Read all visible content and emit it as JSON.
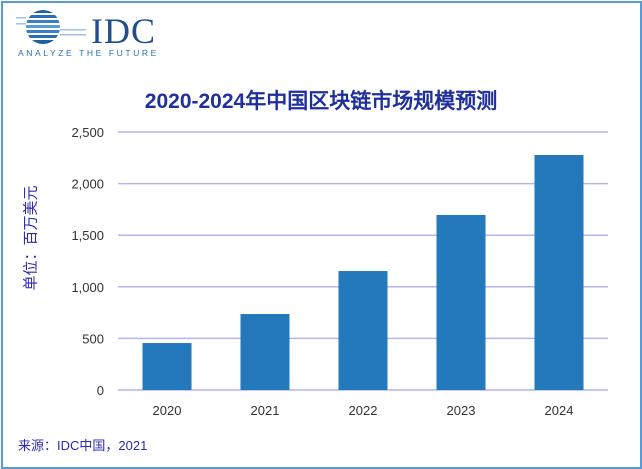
{
  "logo": {
    "name": "IDC",
    "tagline": "ANALYZE THE FUTURE"
  },
  "source": "来源：IDC中国，2021",
  "chart_data": {
    "type": "bar",
    "title": "2020-2024年中国区块链市场规模预测",
    "xlabel": "",
    "ylabel": "单位：百万美元",
    "categories": [
      "2020",
      "2021",
      "2022",
      "2023",
      "2024"
    ],
    "values": [
      455,
      736,
      1153,
      1696,
      2277
    ],
    "ylim": [
      0,
      2500
    ],
    "yticks": [
      0,
      500,
      1000,
      1500,
      2000,
      2500
    ],
    "ytick_labels": [
      "0",
      "500",
      "1,000",
      "1,500",
      "2,000",
      "2,500"
    ],
    "grid": true,
    "colors": {
      "bar": "#2479bd",
      "grid": "#b4b4f0",
      "text": "#1f2f9c"
    }
  }
}
